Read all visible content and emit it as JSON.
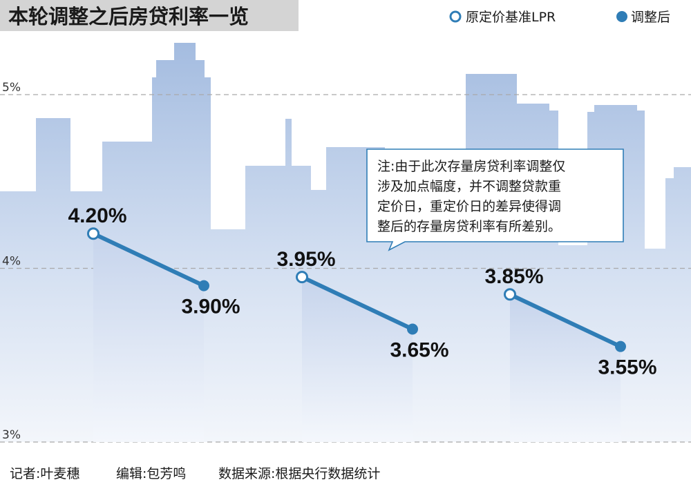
{
  "chart_data": {
    "type": "line",
    "title": "本轮调整之后房贷利率一览",
    "legend": [
      {
        "label": "原定价基准LPR",
        "marker": "hollow-circle"
      },
      {
        "label": "调整后",
        "marker": "filled-circle"
      }
    ],
    "y_ticks": [
      {
        "value": 5,
        "label": "5%"
      },
      {
        "value": 4,
        "label": "4%"
      },
      {
        "value": 3,
        "label": "3%"
      }
    ],
    "ylim": [
      3,
      5.5
    ],
    "series": [
      {
        "name": "原定价基准LPR",
        "values": [
          4.2,
          3.95,
          3.85
        ],
        "labels": [
          "4.20%",
          "3.95%",
          "3.85%"
        ]
      },
      {
        "name": "调整后",
        "values": [
          3.9,
          3.65,
          3.55
        ],
        "labels": [
          "3.90%",
          "3.65%",
          "3.55%"
        ]
      }
    ],
    "note_lines": [
      "注:由于此次存量房贷利率调整仅",
      "涉及加点幅度，并不调整贷款重",
      "定价日，重定价日的差异使得调",
      "整后的存量房贷利率有所差别。"
    ]
  },
  "footer": {
    "reporter": "记者:叶麦穗",
    "editor": "编辑:包芳鸣",
    "source": "数据来源:根据央行数据统计"
  },
  "colors": {
    "line": "#2f7db6",
    "title_band": "#d4d4d4",
    "building_top": "#a8bfe2",
    "building_bottom": "#e9eef8",
    "grid": "#a9a9a9"
  }
}
